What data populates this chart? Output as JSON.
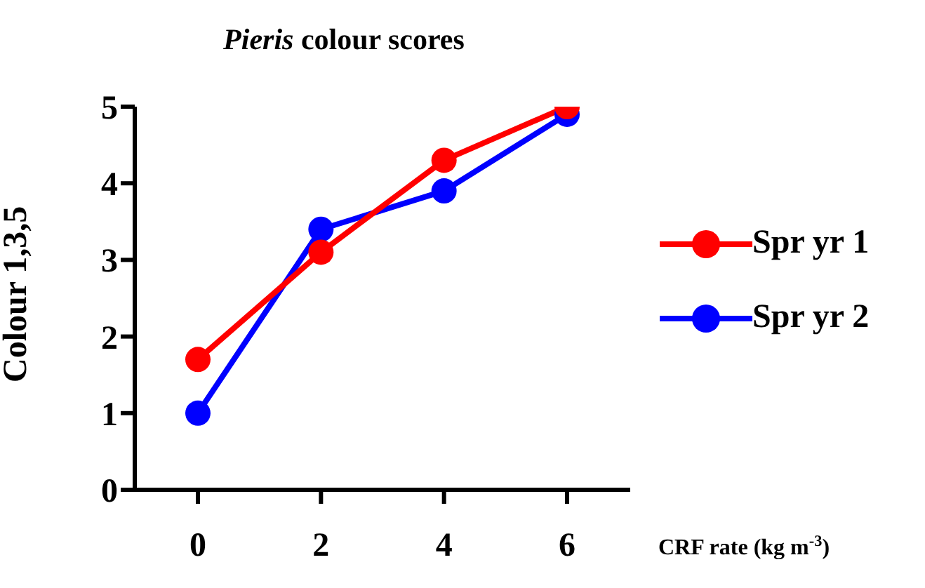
{
  "chart_data": {
    "type": "line",
    "title": "Pieris colour scores",
    "xlabel": "CRF rate (kg m$^{-3}$)",
    "ylabel": "Colour 1,3,5",
    "categories": [
      "0",
      "2",
      "4",
      "6"
    ],
    "series": [
      {
        "name": "Spr yr 1",
        "color": "#ff0000",
        "values": [
          1.7,
          3.1,
          4.3,
          5.0
        ]
      },
      {
        "name": "Spr yr 2",
        "color": "#0000ff",
        "values": [
          1.0,
          3.4,
          3.9,
          4.9
        ]
      }
    ],
    "ylim": [
      0,
      5
    ],
    "yticks": [
      0,
      1,
      2,
      3,
      4,
      5
    ],
    "grid": false,
    "legend": "right",
    "marker": "circle",
    "line_style": "solid"
  }
}
